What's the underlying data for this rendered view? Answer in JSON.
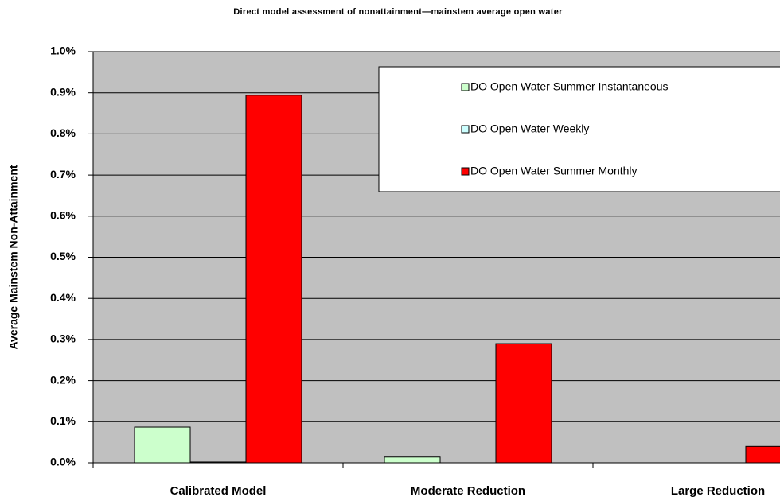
{
  "chart_data": {
    "type": "bar",
    "title": "Direct model assessment of nonattainment—mainstem average open water",
    "ylabel": "Average Mainstem Non-Attainment",
    "categories": [
      "Calibrated Model",
      "Moderate Reduction",
      "Large Reduction"
    ],
    "series": [
      {
        "name": "DO Open Water Summer Instantaneous",
        "color": "#ccffcc",
        "values": [
          0.087,
          0.014,
          0
        ]
      },
      {
        "name": "DO Open Water Weekly",
        "color": "#ccffff",
        "values": [
          0.002,
          0,
          0
        ]
      },
      {
        "name": "DO Open Water Summer Monthly",
        "color": "#ff0000",
        "values": [
          0.894,
          0.29,
          0.04
        ]
      }
    ],
    "ylim": [
      0,
      1
    ],
    "yticks": [
      {
        "value": 0,
        "label": "0.0%"
      },
      {
        "value": 0.1,
        "label": "0.1%"
      },
      {
        "value": 0.2,
        "label": "0.2%"
      },
      {
        "value": 0.3,
        "label": "0.3%"
      },
      {
        "value": 0.4,
        "label": "0.4%"
      },
      {
        "value": 0.5,
        "label": "0.5%"
      },
      {
        "value": 0.6,
        "label": "0.6%"
      },
      {
        "value": 0.7,
        "label": "0.7%"
      },
      {
        "value": 0.8,
        "label": "0.8%"
      },
      {
        "value": 0.9,
        "label": "0.9%"
      },
      {
        "value": 1,
        "label": "1.0%"
      }
    ],
    "grid": true,
    "legend": "upper right"
  }
}
